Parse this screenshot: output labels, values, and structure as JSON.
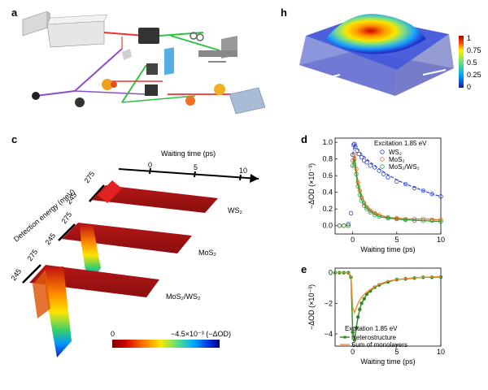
{
  "panels": {
    "a": {
      "label": "a"
    },
    "h": {
      "label": "h",
      "colorbar_ticks": [
        "1",
        "0.75",
        "0.5",
        "0.25",
        "0"
      ]
    },
    "c": {
      "label": "c",
      "waiting_time_label": "Waiting time (ps)",
      "waiting_ticks": [
        "0",
        "5",
        "10"
      ],
      "detection_label": "Detection energy (meV)",
      "energy_ticks": [
        "245",
        "275"
      ],
      "sample_labels": [
        "WS₂",
        "MoS₂",
        "MoS₂/WS₂"
      ],
      "colorbar_min": "0",
      "colorbar_max": "−4.5×10⁻³ (−ΔOD)"
    },
    "d": {
      "label": "d",
      "annotation": "Excitation 1.85 eV"
    },
    "e": {
      "label": "e",
      "annotation": "Excitation 1.85 eV"
    }
  },
  "chart_data": [
    {
      "id": "d",
      "type": "scatter",
      "xlabel": "Waiting time (ps)",
      "ylabel": "−ΔOD (×10⁻³)",
      "xlim": [
        -2,
        10
      ],
      "ylim": [
        -0.1,
        1.05
      ],
      "xticks": [
        "0",
        "5",
        "10"
      ],
      "yticks": [
        "0.0",
        "0.2",
        "0.4",
        "0.6",
        "0.8",
        "1.0"
      ],
      "series": [
        {
          "name": "WS₂",
          "color": "#2a3fd6",
          "marker": "open-circle",
          "x": [
            -1.5,
            -1,
            -0.5,
            -0.2,
            0,
            0.1,
            0.2,
            0.3,
            0.5,
            0.7,
            1,
            1.3,
            1.6,
            2,
            2.5,
            3,
            3.5,
            4,
            5,
            6,
            7,
            8,
            9,
            10
          ],
          "y": [
            0.0,
            0.0,
            0.02,
            0.15,
            0.85,
            0.97,
            0.98,
            0.95,
            0.9,
            0.86,
            0.82,
            0.78,
            0.76,
            0.72,
            0.7,
            0.66,
            0.62,
            0.58,
            0.53,
            0.5,
            0.45,
            0.42,
            0.38,
            0.35
          ],
          "fit_x": [
            0,
            0.2,
            0.5,
            1,
            2,
            3,
            4,
            5,
            6,
            7,
            8,
            9,
            10
          ],
          "fit_y": [
            0.85,
            0.97,
            0.93,
            0.86,
            0.76,
            0.68,
            0.61,
            0.55,
            0.5,
            0.46,
            0.42,
            0.38,
            0.35
          ]
        },
        {
          "name": "MoS₂",
          "color": "#e07020",
          "marker": "open-circle",
          "x": [
            -1.5,
            -1,
            -0.5,
            0,
            0.2,
            0.4,
            0.6,
            0.8,
            1,
            1.3,
            1.6,
            2,
            2.5,
            3,
            4,
            5,
            6,
            7,
            8,
            9,
            10
          ],
          "y": [
            0.0,
            0.0,
            0.0,
            0.78,
            0.85,
            0.68,
            0.52,
            0.42,
            0.34,
            0.27,
            0.22,
            0.18,
            0.15,
            0.13,
            0.1,
            0.09,
            0.08,
            0.08,
            0.08,
            0.07,
            0.07
          ],
          "fit_x": [
            0,
            0.2,
            0.5,
            1,
            1.5,
            2,
            3,
            4,
            5,
            6,
            8,
            10
          ],
          "fit_y": [
            0.75,
            0.85,
            0.58,
            0.36,
            0.25,
            0.19,
            0.13,
            0.1,
            0.09,
            0.08,
            0.08,
            0.07
          ]
        },
        {
          "name": "MoS₂/WS₂",
          "color": "#2e9a3a",
          "marker": "open-circle",
          "x": [
            -1.5,
            -1,
            -0.5,
            0,
            0.2,
            0.4,
            0.6,
            0.8,
            1,
            1.3,
            1.6,
            2,
            2.5,
            3,
            4,
            5,
            6,
            7,
            8,
            9,
            10
          ],
          "y": [
            0.0,
            0.0,
            0.0,
            0.72,
            0.8,
            0.62,
            0.47,
            0.37,
            0.3,
            0.24,
            0.2,
            0.16,
            0.13,
            0.11,
            0.09,
            0.08,
            0.07,
            0.06,
            0.06,
            0.06,
            0.05
          ],
          "fit_x": [
            0,
            0.2,
            0.5,
            1,
            1.5,
            2,
            3,
            4,
            5,
            6,
            8,
            10
          ],
          "fit_y": [
            0.7,
            0.8,
            0.52,
            0.31,
            0.22,
            0.17,
            0.11,
            0.09,
            0.08,
            0.07,
            0.06,
            0.05
          ]
        }
      ]
    },
    {
      "id": "e",
      "type": "line",
      "xlabel": "Waiting time (ps)",
      "ylabel": "−ΔOD (×10⁻³)",
      "xlim": [
        -2,
        10
      ],
      "ylim": [
        -4.8,
        0.3
      ],
      "xticks": [
        "0",
        "5",
        "10"
      ],
      "yticks": [
        "−4",
        "−2",
        "0"
      ],
      "series": [
        {
          "name": "Heterostructure",
          "color": "#2e8a1e",
          "marker": "dot",
          "x": [
            -2,
            -1.5,
            -1,
            -0.5,
            -0.2,
            0,
            0.2,
            0.4,
            0.6,
            0.8,
            1,
            1.3,
            1.6,
            2,
            2.5,
            3,
            4,
            5,
            6,
            7,
            8,
            9,
            10
          ],
          "y": [
            0,
            0,
            0,
            0,
            -0.3,
            -3.9,
            -4.4,
            -3.6,
            -2.9,
            -2.4,
            -2.0,
            -1.7,
            -1.4,
            -1.2,
            -0.95,
            -0.8,
            -0.6,
            -0.45,
            -0.4,
            -0.35,
            -0.3,
            -0.3,
            -0.28
          ]
        },
        {
          "name": "Sum of monolayers",
          "color": "#f08c2a",
          "marker": "none",
          "x": [
            -2,
            -1,
            -0.5,
            -0.2,
            0,
            0.2,
            0.4,
            0.6,
            0.8,
            1,
            1.5,
            2,
            3,
            4,
            5,
            6,
            7,
            8,
            9,
            10
          ],
          "y": [
            0,
            0,
            0,
            -0.2,
            -2.3,
            -2.6,
            -2.3,
            -2.0,
            -1.8,
            -1.6,
            -1.3,
            -1.1,
            -0.75,
            -0.55,
            -0.45,
            -0.38,
            -0.33,
            -0.3,
            -0.28,
            -0.26
          ]
        }
      ]
    }
  ]
}
